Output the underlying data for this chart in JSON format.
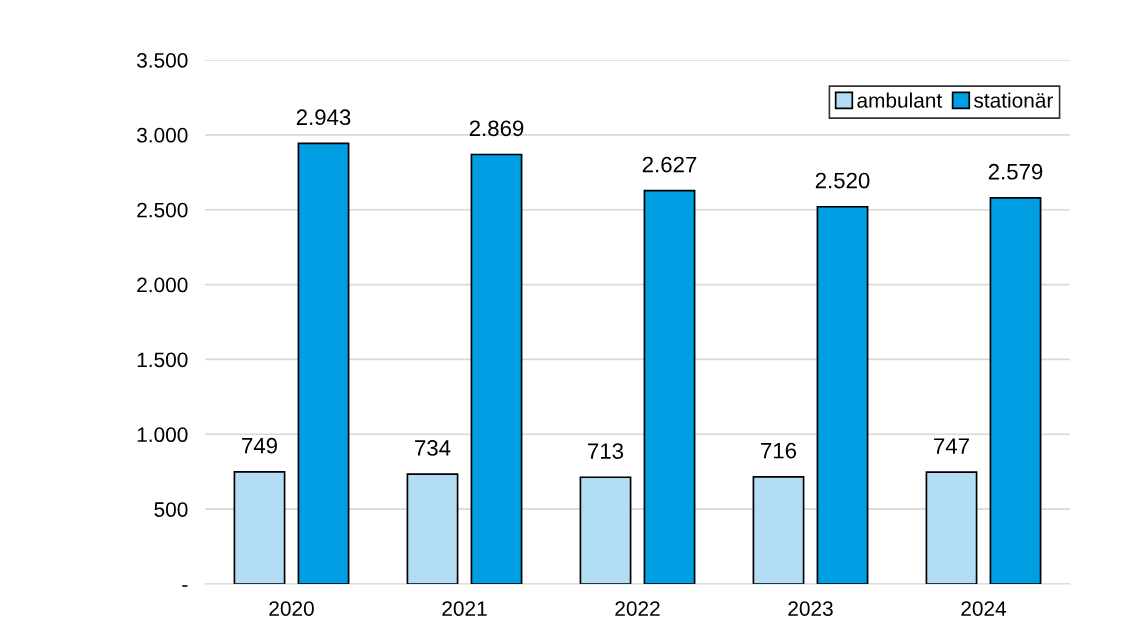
{
  "chart_data": {
    "type": "bar",
    "categories": [
      "2020",
      "2021",
      "2022",
      "2023",
      "2024"
    ],
    "series": [
      {
        "name": "ambulant",
        "color": "#b3dcf5",
        "values": [
          749,
          734,
          713,
          716,
          747
        ],
        "value_labels": [
          "749",
          "734",
          "713",
          "716",
          "747"
        ]
      },
      {
        "name": "stationär",
        "color": "#009fe3",
        "values": [
          2943,
          2869,
          2627,
          2520,
          2579
        ],
        "value_labels": [
          "2.943",
          "2.869",
          "2.627",
          "2.520",
          "2.579"
        ]
      }
    ],
    "ylim": [
      0,
      3500
    ],
    "yticks": [
      {
        "value": 0,
        "label": "-"
      },
      500,
      {
        "value": 1000,
        "label": "1.000"
      },
      {
        "value": 1500,
        "label": "1.500"
      },
      {
        "value": 2000,
        "label": "2.000"
      },
      {
        "value": 2500,
        "label": "2.500"
      },
      {
        "value": 3000,
        "label": "3.000"
      },
      {
        "value": 3500,
        "label": "3.500"
      }
    ],
    "grid": "y",
    "legend": "top right"
  }
}
